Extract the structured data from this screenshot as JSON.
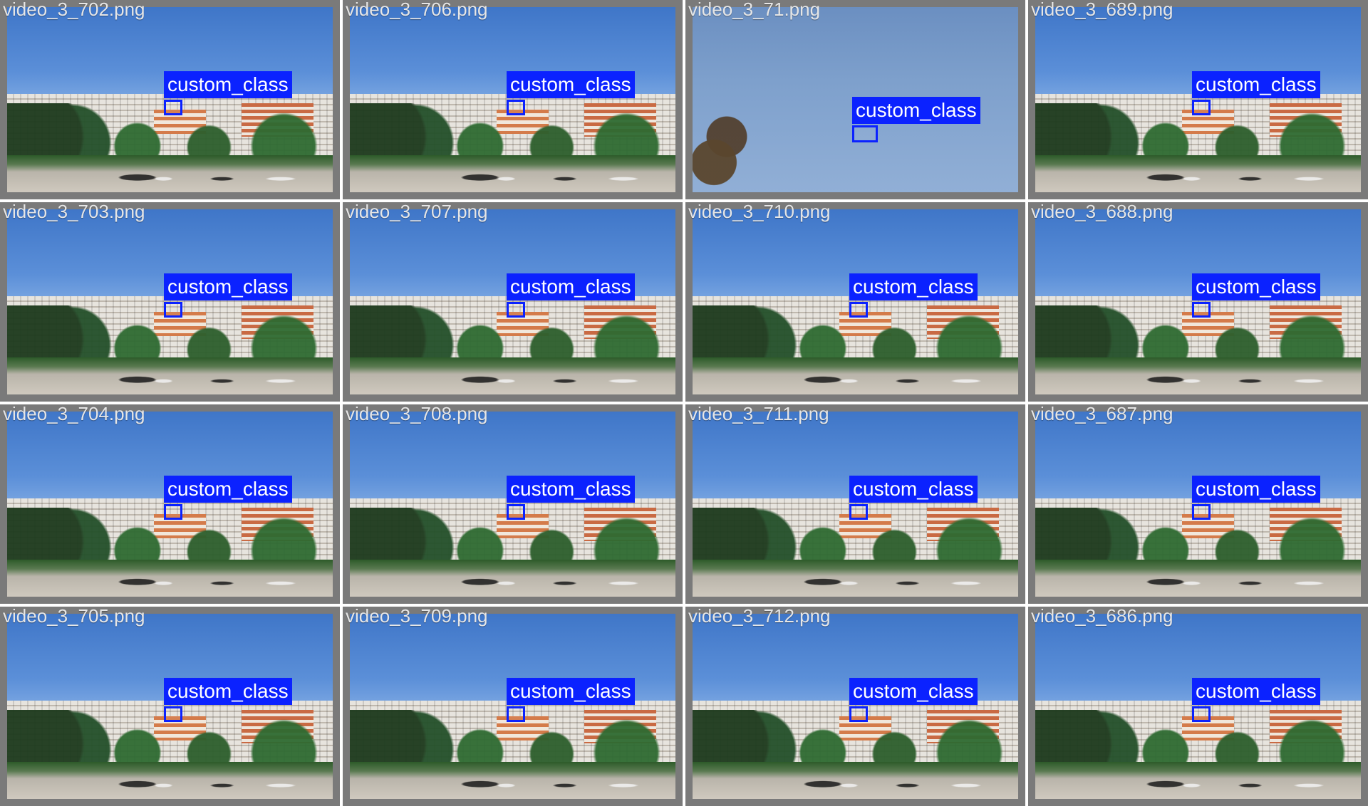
{
  "tiles": [
    {
      "filename": "video_3_702.png",
      "label": "custom_class",
      "variant": "scene"
    },
    {
      "filename": "video_3_706.png",
      "label": "custom_class",
      "variant": "scene"
    },
    {
      "filename": "video_3_71.png",
      "label": "custom_class",
      "variant": "skyonly"
    },
    {
      "filename": "video_3_689.png",
      "label": "custom_class",
      "variant": "scene"
    },
    {
      "filename": "video_3_703.png",
      "label": "custom_class",
      "variant": "scene"
    },
    {
      "filename": "video_3_707.png",
      "label": "custom_class",
      "variant": "scene"
    },
    {
      "filename": "video_3_710.png",
      "label": "custom_class",
      "variant": "scene"
    },
    {
      "filename": "video_3_688.png",
      "label": "custom_class",
      "variant": "scene"
    },
    {
      "filename": "video_3_704.png",
      "label": "custom_class",
      "variant": "scene"
    },
    {
      "filename": "video_3_708.png",
      "label": "custom_class",
      "variant": "scene"
    },
    {
      "filename": "video_3_711.png",
      "label": "custom_class",
      "variant": "scene"
    },
    {
      "filename": "video_3_687.png",
      "label": "custom_class",
      "variant": "scene"
    },
    {
      "filename": "video_3_705.png",
      "label": "custom_class",
      "variant": "scene"
    },
    {
      "filename": "video_3_709.png",
      "label": "custom_class",
      "variant": "scene"
    },
    {
      "filename": "video_3_712.png",
      "label": "custom_class",
      "variant": "scene"
    },
    {
      "filename": "video_3_686.png",
      "label": "custom_class",
      "variant": "scene"
    }
  ]
}
